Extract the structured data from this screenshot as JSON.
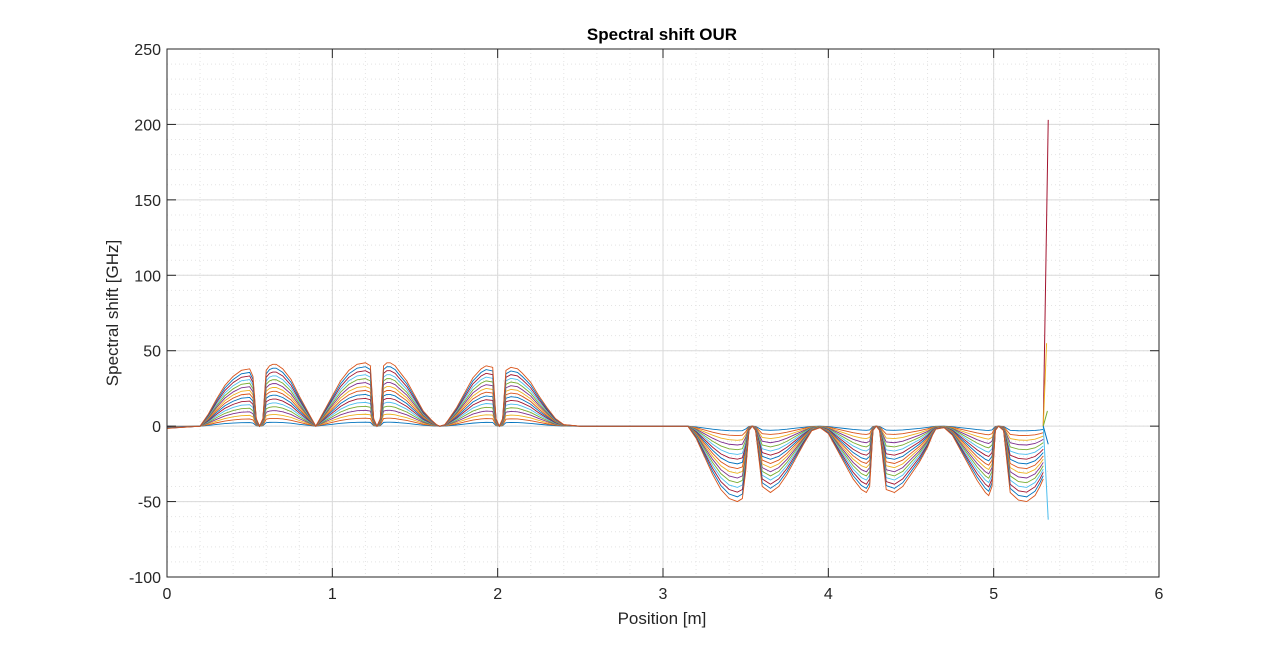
{
  "chart_data": {
    "type": "line",
    "title": "Spectral shift OUR",
    "xlabel": "Position [m]",
    "ylabel": "Spectral shift [GHz]",
    "xlim": [
      0,
      6
    ],
    "ylim": [
      -100,
      250
    ],
    "xticks": [
      0,
      1,
      2,
      3,
      4,
      5,
      6
    ],
    "xtick_labels": [
      "0",
      "1",
      "2",
      "3",
      "4",
      "5",
      "6"
    ],
    "yticks": [
      -100,
      -50,
      0,
      50,
      100,
      150,
      200,
      250
    ],
    "ytick_labels": [
      "-100",
      "-50",
      "0",
      "50",
      "100",
      "150",
      "200",
      "250"
    ],
    "grid": true,
    "minor_grid": true,
    "legend": "none",
    "series_count": 16,
    "colors": [
      "#0072BD",
      "#D95319",
      "#EDB120",
      "#7E2F8E",
      "#77AC30",
      "#4DBEEE",
      "#A2142F"
    ],
    "envelope": {
      "x": [
        0,
        0.2,
        0.25,
        0.3,
        0.35,
        0.4,
        0.45,
        0.5,
        0.52,
        0.54,
        0.56,
        0.58,
        0.6,
        0.62,
        0.64,
        0.66,
        0.7,
        0.75,
        0.8,
        0.85,
        0.88,
        0.9,
        0.92,
        0.95,
        1.0,
        1.05,
        1.1,
        1.15,
        1.2,
        1.23,
        1.25,
        1.27,
        1.29,
        1.31,
        1.33,
        1.35,
        1.38,
        1.4,
        1.45,
        1.5,
        1.55,
        1.6,
        1.63,
        1.65,
        1.68,
        1.7,
        1.75,
        1.8,
        1.85,
        1.9,
        1.93,
        1.97,
        1.99,
        2.01,
        2.03,
        2.05,
        2.08,
        2.12,
        2.15,
        2.2,
        2.25,
        2.3,
        2.35,
        2.4,
        2.5,
        2.8,
        3.0,
        3.15,
        3.2,
        3.25,
        3.3,
        3.35,
        3.4,
        3.45,
        3.48,
        3.5,
        3.52,
        3.54,
        3.56,
        3.6,
        3.65,
        3.7,
        3.75,
        3.8,
        3.85,
        3.9,
        3.95,
        4.0,
        4.05,
        4.1,
        4.15,
        4.2,
        4.23,
        4.25,
        4.27,
        4.29,
        4.31,
        4.35,
        4.4,
        4.45,
        4.5,
        4.55,
        4.6,
        4.63,
        4.65,
        4.7,
        4.75,
        4.8,
        4.85,
        4.9,
        4.95,
        4.97,
        4.99,
        5.01,
        5.03,
        5.06,
        5.1,
        5.15,
        5.2,
        5.25,
        5.28,
        5.3
      ],
      "y": [
        0,
        0,
        8,
        18,
        27,
        33,
        37,
        38,
        33,
        5,
        0,
        5,
        37,
        40,
        41,
        41,
        38,
        31,
        20,
        10,
        4,
        0,
        4,
        10,
        20,
        30,
        37,
        41,
        42,
        40,
        5,
        0,
        5,
        40,
        42,
        42,
        40,
        37,
        30,
        20,
        10,
        4,
        1,
        0,
        1,
        4,
        12,
        22,
        32,
        38,
        40,
        39,
        5,
        0,
        5,
        37,
        39,
        38,
        35,
        29,
        20,
        12,
        5,
        1,
        0,
        0,
        0,
        0,
        -8,
        -20,
        -32,
        -42,
        -48,
        -50,
        -48,
        -30,
        -3,
        0,
        -3,
        -40,
        -44,
        -40,
        -32,
        -22,
        -12,
        -3,
        -1,
        -5,
        -15,
        -25,
        -35,
        -42,
        -44,
        -40,
        -3,
        0,
        -3,
        -42,
        -44,
        -40,
        -32,
        -24,
        -14,
        -6,
        -2,
        -1,
        -6,
        -16,
        -26,
        -36,
        -44,
        -46,
        -40,
        -3,
        0,
        -3,
        -44,
        -49,
        -50,
        -46,
        -40,
        -35
      ],
      "final_spikes": [
        {
          "x": 5.33,
          "y": 203,
          "color": "#A2142F"
        },
        {
          "x": 5.32,
          "y": 55,
          "color": "#EDB120"
        },
        {
          "x": 5.325,
          "y": 10,
          "color": "#77AC30"
        },
        {
          "x": 5.33,
          "y": -62,
          "color": "#4DBEEE"
        },
        {
          "x": 5.33,
          "y": -12,
          "color": "#0072BD"
        }
      ]
    }
  }
}
